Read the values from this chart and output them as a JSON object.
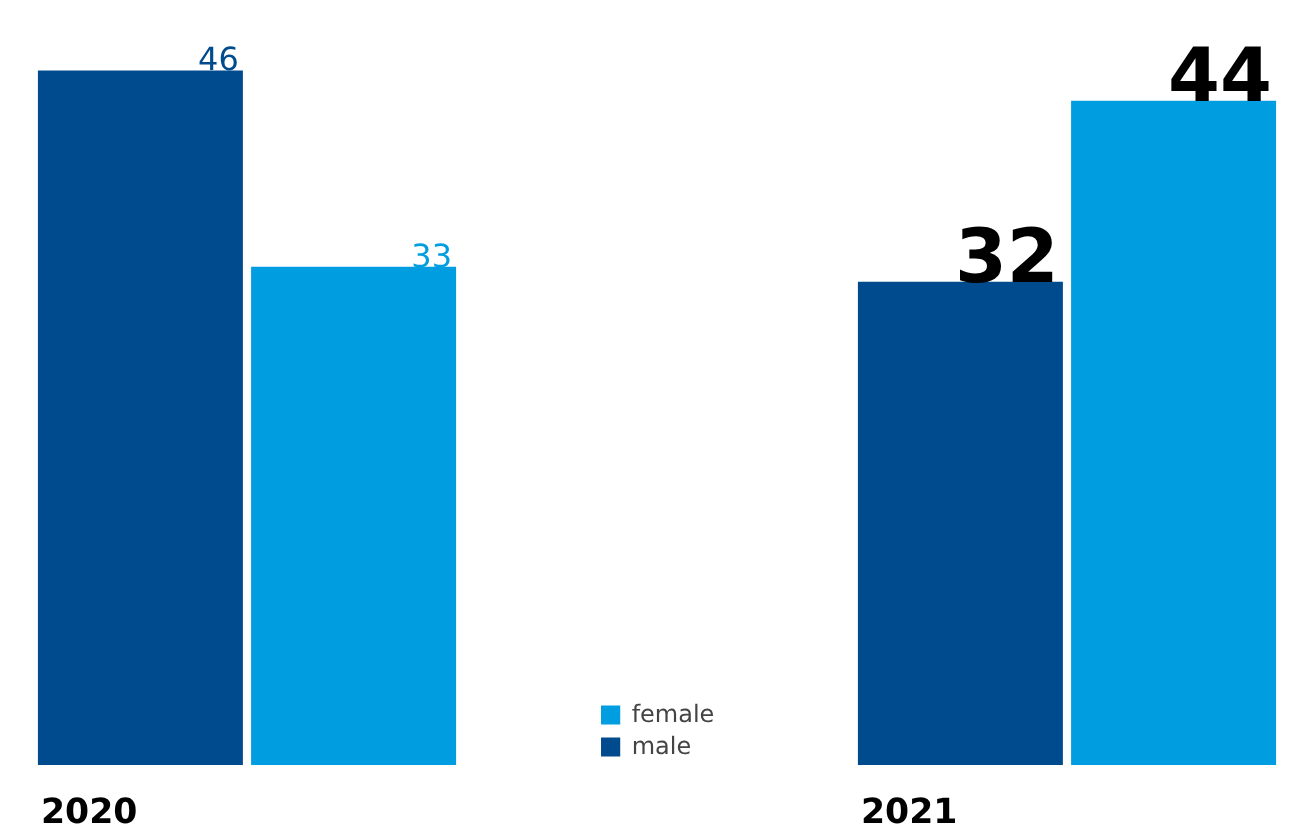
{
  "chart_data": {
    "type": "bar",
    "categories": [
      "2020",
      "2021"
    ],
    "series": [
      {
        "name": "male",
        "color": "#004b8d",
        "values": [
          46,
          32
        ]
      },
      {
        "name": "female",
        "color": "#009ee0",
        "values": [
          33,
          44
        ]
      }
    ],
    "data_labels": true,
    "legend": "bottom",
    "grid": false
  }
}
